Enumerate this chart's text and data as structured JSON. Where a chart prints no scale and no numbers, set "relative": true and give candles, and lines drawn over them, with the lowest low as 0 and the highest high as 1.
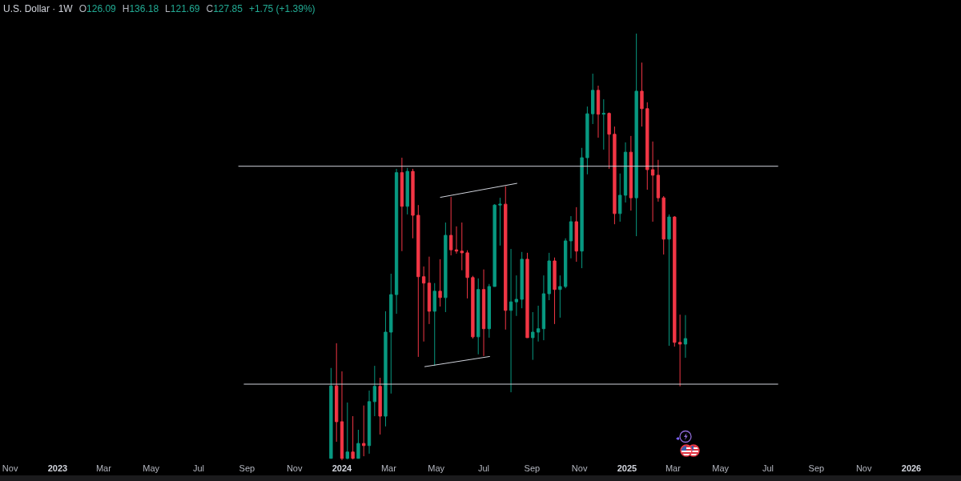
{
  "chart_data": {
    "type": "candlestick",
    "title": "U.S. Dollar · 1W",
    "annotations": [
      "O126.09",
      "H136.18",
      "L121.69",
      "C127.85",
      "+1.75 (+1.39%)"
    ],
    "relative": true,
    "x": [
      "2023-12-18",
      "2023-12-25",
      "2024-01-01",
      "2024-01-08",
      "2024-01-15",
      "2024-01-22",
      "2024-01-29",
      "2024-02-05",
      "2024-02-12",
      "2024-02-19",
      "2024-02-26",
      "2024-03-04",
      "2024-03-11",
      "2024-03-18",
      "2024-03-25",
      "2024-04-01",
      "2024-04-08",
      "2024-04-15",
      "2024-04-22",
      "2024-04-29",
      "2024-05-06",
      "2024-05-13",
      "2024-05-20",
      "2024-05-27",
      "2024-06-03",
      "2024-06-10",
      "2024-06-17",
      "2024-06-24",
      "2024-07-01",
      "2024-07-08",
      "2024-07-15",
      "2024-07-22",
      "2024-07-29",
      "2024-08-05",
      "2024-08-12",
      "2024-08-19",
      "2024-08-26",
      "2024-09-02",
      "2024-09-09",
      "2024-09-16",
      "2024-09-23",
      "2024-09-30",
      "2024-10-07",
      "2024-10-14",
      "2024-10-21",
      "2024-10-28",
      "2024-11-04",
      "2024-11-11",
      "2024-11-18",
      "2024-11-25",
      "2024-12-02",
      "2024-12-09",
      "2024-12-16",
      "2024-12-23",
      "2024-12-30",
      "2025-01-06",
      "2025-01-13",
      "2025-01-20",
      "2025-01-27",
      "2025-02-03",
      "2025-02-10",
      "2025-02-17",
      "2025-02-24",
      "2025-03-03",
      "2025-03-10",
      "2025-03-17"
    ],
    "ohlc": [
      [
        0.004,
        0.216,
        0.004,
        0.174
      ],
      [
        0.174,
        0.274,
        0.043,
        0.09
      ],
      [
        0.09,
        0.208,
        0.0,
        0.004
      ],
      [
        0.004,
        0.135,
        0.002,
        0.019
      ],
      [
        0.019,
        0.103,
        0.002,
        0.004
      ],
      [
        0.004,
        0.071,
        0.004,
        0.039
      ],
      [
        0.039,
        0.128,
        0.009,
        0.034
      ],
      [
        0.034,
        0.163,
        0.015,
        0.137
      ],
      [
        0.137,
        0.221,
        0.103,
        0.173
      ],
      [
        0.173,
        0.193,
        0.06,
        0.103
      ],
      [
        0.103,
        0.349,
        0.079,
        0.3
      ],
      [
        0.3,
        0.437,
        0.156,
        0.388
      ],
      [
        0.388,
        0.683,
        0.343,
        0.674
      ],
      [
        0.674,
        0.709,
        0.49,
        0.595
      ],
      [
        0.595,
        0.685,
        0.576,
        0.677
      ],
      [
        0.677,
        0.683,
        0.52,
        0.574
      ],
      [
        0.574,
        0.598,
        0.242,
        0.43
      ],
      [
        0.43,
        0.454,
        0.278,
        0.415
      ],
      [
        0.415,
        0.477,
        0.319,
        0.349
      ],
      [
        0.349,
        0.415,
        0.221,
        0.396
      ],
      [
        0.396,
        0.471,
        0.36,
        0.381
      ],
      [
        0.381,
        0.557,
        0.347,
        0.527
      ],
      [
        0.527,
        0.617,
        0.48,
        0.493
      ],
      [
        0.493,
        0.548,
        0.484,
        0.49
      ],
      [
        0.49,
        0.557,
        0.445,
        0.486
      ],
      [
        0.486,
        0.492,
        0.379,
        0.428
      ],
      [
        0.428,
        0.432,
        0.285,
        0.289
      ],
      [
        0.289,
        0.426,
        0.248,
        0.4
      ],
      [
        0.4,
        0.447,
        0.244,
        0.308
      ],
      [
        0.308,
        0.413,
        0.287,
        0.407
      ],
      [
        0.407,
        0.6,
        0.407,
        0.598
      ],
      [
        0.598,
        0.615,
        0.503,
        0.6
      ],
      [
        0.6,
        0.642,
        0.306,
        0.351
      ],
      [
        0.351,
        0.495,
        0.159,
        0.371
      ],
      [
        0.371,
        0.433,
        0.338,
        0.377
      ],
      [
        0.377,
        0.488,
        0.356,
        0.471
      ],
      [
        0.471,
        0.486,
        0.287,
        0.287
      ],
      [
        0.287,
        0.347,
        0.235,
        0.3
      ],
      [
        0.3,
        0.362,
        0.278,
        0.308
      ],
      [
        0.308,
        0.433,
        0.281,
        0.39
      ],
      [
        0.39,
        0.486,
        0.375,
        0.467
      ],
      [
        0.467,
        0.475,
        0.319,
        0.4
      ],
      [
        0.4,
        0.433,
        0.334,
        0.407
      ],
      [
        0.407,
        0.52,
        0.403,
        0.514
      ],
      [
        0.514,
        0.572,
        0.473,
        0.559
      ],
      [
        0.559,
        0.593,
        0.465,
        0.49
      ],
      [
        0.49,
        0.732,
        0.45,
        0.709
      ],
      [
        0.709,
        0.829,
        0.67,
        0.812
      ],
      [
        0.812,
        0.906,
        0.788,
        0.867
      ],
      [
        0.867,
        0.878,
        0.756,
        0.811
      ],
      [
        0.811,
        0.846,
        0.728,
        0.813
      ],
      [
        0.813,
        0.815,
        0.683,
        0.764
      ],
      [
        0.764,
        0.782,
        0.553,
        0.578
      ],
      [
        0.578,
        0.672,
        0.559,
        0.621
      ],
      [
        0.621,
        0.745,
        0.604,
        0.722
      ],
      [
        0.722,
        0.76,
        0.585,
        0.615
      ],
      [
        0.615,
        1.0,
        0.525,
        0.865
      ],
      [
        0.865,
        0.932,
        0.782,
        0.824
      ],
      [
        0.824,
        0.839,
        0.634,
        0.681
      ],
      [
        0.681,
        0.747,
        0.559,
        0.668
      ],
      [
        0.668,
        0.704,
        0.606,
        0.615
      ],
      [
        0.615,
        0.619,
        0.482,
        0.518
      ],
      [
        0.518,
        0.576,
        0.268,
        0.57
      ],
      [
        0.57,
        0.572,
        0.266,
        0.276
      ],
      [
        0.276,
        0.341,
        0.173,
        0.272
      ],
      [
        0.272,
        0.34,
        0.24,
        0.285
      ]
    ],
    "colors": [
      "#089981",
      "#f23645",
      "#f23645",
      "#089981",
      "#f23645",
      "#089981",
      "#f23645",
      "#089981",
      "#089981",
      "#f23645",
      "#089981",
      "#089981",
      "#089981",
      "#f23645",
      "#089981",
      "#f23645",
      "#f23645",
      "#f23645",
      "#f23645",
      "#089981",
      "#f23645",
      "#089981",
      "#f23645",
      "#f23645",
      "#f23645",
      "#f23645",
      "#f23645",
      "#089981",
      "#f23645",
      "#089981",
      "#089981",
      "#089981",
      "#f23645",
      "#089981",
      "#089981",
      "#089981",
      "#f23645",
      "#089981",
      "#089981",
      "#089981",
      "#089981",
      "#f23645",
      "#089981",
      "#089981",
      "#089981",
      "#f23645",
      "#089981",
      "#089981",
      "#089981",
      "#f23645",
      "#089981",
      "#f23645",
      "#f23645",
      "#089981",
      "#089981",
      "#f23645",
      "#089981",
      "#f23645",
      "#f23645",
      "#f23645",
      "#f23645",
      "#f23645",
      "#089981",
      "#f23645",
      "#f23645",
      "#089981"
    ],
    "series": [
      {
        "type": "line",
        "color": "#d1d4dc",
        "x": [
          "2023-08-21",
          "2025-07-14"
        ],
        "values": [
          0.689,
          0.689
        ]
      },
      {
        "type": "line",
        "color": "#d1d4dc",
        "x": [
          "2023-08-28",
          "2025-07-14"
        ],
        "values": [
          0.178,
          0.178
        ]
      },
      {
        "type": "line",
        "color": "#d1d4dc",
        "x": [
          "2024-05-06",
          "2024-08-13"
        ],
        "values": [
          0.616,
          0.649
        ]
      },
      {
        "type": "line",
        "color": "#d1d4dc",
        "x": [
          "2024-04-16",
          "2024-07-09"
        ],
        "values": [
          0.219,
          0.243
        ]
      }
    ],
    "xlim": [
      "2022-10-19",
      "2026-01-01"
    ],
    "xticks": [
      {
        "value": "2022-11-01",
        "label": "Nov"
      },
      {
        "value": "2023-01-01",
        "label": "2023"
      },
      {
        "value": "2023-03-01",
        "label": "Mar"
      },
      {
        "value": "2023-05-01",
        "label": "May"
      },
      {
        "value": "2023-07-01",
        "label": "Jul"
      },
      {
        "value": "2023-09-01",
        "label": "Sep"
      },
      {
        "value": "2023-11-01",
        "label": "Nov"
      },
      {
        "value": "2024-01-01",
        "label": "2024"
      },
      {
        "value": "2024-03-01",
        "label": "Mar"
      },
      {
        "value": "2024-05-01",
        "label": "May"
      },
      {
        "value": "2024-07-01",
        "label": "Jul"
      },
      {
        "value": "2024-09-01",
        "label": "Sep"
      },
      {
        "value": "2024-11-01",
        "label": "Nov"
      },
      {
        "value": "2025-01-01",
        "label": "2025"
      },
      {
        "value": "2025-03-01",
        "label": "Mar"
      },
      {
        "value": "2025-05-01",
        "label": "May"
      },
      {
        "value": "2025-07-01",
        "label": "Jul"
      },
      {
        "value": "2025-09-01",
        "label": "Sep"
      },
      {
        "value": "2025-11-01",
        "label": "Nov"
      },
      {
        "value": "2026-01-01",
        "label": "2026"
      }
    ]
  }
}
